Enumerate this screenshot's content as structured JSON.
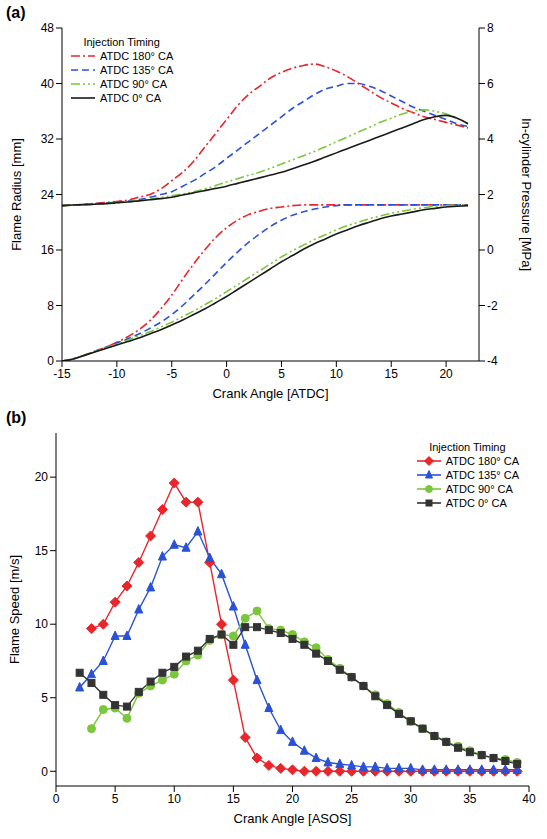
{
  "chart_data": [
    {
      "type": "line",
      "title": "(a)",
      "x_label": "Crank Angle [ATDC]",
      "y_label": "Flame Radius [mm]",
      "y2_label": "In-cylinder Pressure [MPa]",
      "legend_title": "Injection Timing",
      "legend": "upper left",
      "grid": false,
      "xlim": [
        -15,
        23
      ],
      "xticks": [
        -15,
        -10,
        -5,
        0,
        5,
        10,
        15,
        20
      ],
      "ylim": [
        0,
        48
      ],
      "yticks": [
        0,
        8,
        16,
        24,
        32,
        40,
        48
      ],
      "y2lim": [
        -4,
        8
      ],
      "y2ticks": [
        -4,
        -2,
        0,
        2,
        4,
        6,
        8
      ],
      "x": [
        -15,
        -14,
        -13,
        -12,
        -11,
        -10,
        -9,
        -8,
        -7,
        -6,
        -5,
        -4,
        -3,
        -2,
        -1,
        0,
        1,
        2,
        3,
        4,
        5,
        6,
        7,
        8,
        9,
        10,
        11,
        12,
        13,
        14,
        15,
        16,
        17,
        18,
        19,
        20,
        21,
        22
      ],
      "series": [
        {
          "name": "ATDC 180° CA",
          "color": "#e8262b",
          "line_style": "dashdot",
          "values": [
            0,
            0.3,
            0.8,
            1.4,
            2.0,
            2.7,
            3.5,
            4.5,
            5.8,
            7.5,
            9.5,
            11.8,
            14.0,
            16.0,
            17.8,
            19.2,
            20.3,
            21.1,
            21.6,
            22.0,
            22.2,
            22.4,
            22.5,
            22.5,
            22.5,
            22.5,
            22.5,
            22.5,
            22.5,
            22.5,
            22.5,
            22.5,
            22.5,
            22.5,
            22.5,
            22.5,
            22.5,
            22.5
          ]
        },
        {
          "name": "ATDC 135° CA",
          "color": "#2a52d6",
          "line_style": "dashed",
          "values": [
            0,
            0.3,
            0.8,
            1.4,
            2.0,
            2.6,
            3.2,
            3.9,
            4.7,
            5.6,
            6.7,
            8.0,
            9.5,
            11.0,
            12.6,
            14.2,
            15.7,
            17.1,
            18.3,
            19.4,
            20.3,
            21.0,
            21.5,
            21.9,
            22.2,
            22.4,
            22.5,
            22.5,
            22.5,
            22.5,
            22.5,
            22.5,
            22.5,
            22.5,
            22.5,
            22.5,
            22.5,
            22.5
          ]
        },
        {
          "name": "ATDC 90° CA",
          "color": "#7cc63c",
          "line_style": "dashdotdot",
          "values": [
            0,
            0.3,
            0.8,
            1.4,
            1.9,
            2.4,
            3.0,
            3.6,
            4.2,
            4.9,
            5.6,
            6.4,
            7.2,
            8.1,
            9.0,
            10.0,
            11.0,
            12.0,
            13.0,
            14.0,
            15.0,
            15.9,
            16.7,
            17.5,
            18.2,
            18.9,
            19.5,
            20.0,
            20.5,
            20.9,
            21.3,
            21.6,
            21.9,
            22.1,
            22.3,
            22.4,
            22.5,
            22.5
          ]
        },
        {
          "name": "ATDC 0° CA",
          "color": "#1a1a1a",
          "line_style": "solid",
          "values": [
            0,
            0.3,
            0.8,
            1.3,
            1.8,
            2.3,
            2.8,
            3.3,
            3.9,
            4.5,
            5.2,
            5.9,
            6.7,
            7.5,
            8.4,
            9.3,
            10.3,
            11.3,
            12.3,
            13.3,
            14.3,
            15.2,
            16.1,
            16.9,
            17.6,
            18.3,
            18.9,
            19.5,
            20.0,
            20.5,
            20.9,
            21.2,
            21.5,
            21.8,
            22.0,
            22.2,
            22.3,
            22.4
          ]
        },
        {
          "name": "ATDC 180° CA",
          "color": "#e8262b",
          "line_style": "dashdot",
          "axis": "y2",
          "values": [
            1.6,
            1.62,
            1.65,
            1.68,
            1.71,
            1.75,
            1.8,
            1.9,
            2.0,
            2.2,
            2.5,
            2.8,
            3.2,
            3.7,
            4.2,
            4.7,
            5.2,
            5.6,
            5.9,
            6.2,
            6.4,
            6.55,
            6.65,
            6.7,
            6.6,
            6.45,
            6.25,
            6.0,
            5.75,
            5.5,
            5.3,
            5.1,
            4.95,
            4.8,
            4.7,
            4.6,
            4.5,
            4.4
          ]
        },
        {
          "name": "ATDC 135° CA",
          "color": "#2a52d6",
          "line_style": "dashed",
          "axis": "y2",
          "values": [
            1.6,
            1.62,
            1.64,
            1.66,
            1.69,
            1.72,
            1.76,
            1.82,
            1.9,
            2.0,
            2.1,
            2.3,
            2.5,
            2.75,
            3.0,
            3.3,
            3.6,
            3.9,
            4.2,
            4.5,
            4.8,
            5.1,
            5.35,
            5.6,
            5.8,
            5.9,
            6.0,
            6.0,
            5.9,
            5.75,
            5.55,
            5.35,
            5.15,
            5.0,
            4.85,
            4.7,
            4.55,
            4.45
          ]
        },
        {
          "name": "ATDC 90° CA",
          "color": "#7cc63c",
          "line_style": "dashdotdot",
          "axis": "y2",
          "values": [
            1.6,
            1.62,
            1.63,
            1.65,
            1.67,
            1.7,
            1.74,
            1.78,
            1.83,
            1.89,
            1.95,
            2.02,
            2.1,
            2.2,
            2.32,
            2.45,
            2.57,
            2.69,
            2.8,
            2.95,
            3.1,
            3.25,
            3.4,
            3.55,
            3.72,
            3.9,
            4.07,
            4.25,
            4.42,
            4.6,
            4.75,
            4.9,
            5.0,
            5.05,
            5.0,
            4.9,
            4.75,
            4.55
          ]
        },
        {
          "name": "ATDC 0° CA",
          "color": "#1a1a1a",
          "line_style": "solid",
          "axis": "y2",
          "values": [
            1.6,
            1.62,
            1.63,
            1.65,
            1.67,
            1.7,
            1.73,
            1.77,
            1.81,
            1.85,
            1.9,
            1.98,
            2.06,
            2.14,
            2.22,
            2.3,
            2.4,
            2.5,
            2.6,
            2.7,
            2.8,
            2.93,
            3.06,
            3.2,
            3.35,
            3.5,
            3.65,
            3.8,
            3.95,
            4.1,
            4.25,
            4.4,
            4.55,
            4.7,
            4.8,
            4.85,
            4.75,
            4.55
          ]
        }
      ]
    },
    {
      "type": "line",
      "title": "(b)",
      "x_label": "Crank Angle [ASOS]",
      "y_label": "Flame Speed [m/s]",
      "legend_title": "Injection Timing",
      "legend": "upper right",
      "grid": false,
      "xlim": [
        0,
        40
      ],
      "xticks": [
        0,
        5,
        10,
        15,
        20,
        25,
        30,
        35,
        40
      ],
      "ylim": [
        -1,
        23
      ],
      "yticks": [
        0,
        5,
        10,
        15,
        20
      ],
      "series": [
        {
          "name": "ATDC 180° CA",
          "color": "#e8262b",
          "marker": "diamond",
          "line_style": "solid",
          "x": [
            3,
            4,
            5,
            6,
            7,
            8,
            9,
            10,
            11,
            12,
            13,
            14,
            15,
            16,
            17,
            18,
            19,
            20,
            21,
            22,
            23,
            24,
            25,
            26,
            27,
            28,
            29,
            30,
            31,
            32,
            33,
            34,
            35,
            36,
            37,
            38,
            39
          ],
          "values": [
            9.7,
            10.0,
            11.5,
            12.6,
            14.2,
            16.0,
            17.8,
            19.6,
            18.3,
            18.3,
            14.2,
            10.0,
            6.2,
            2.3,
            0.9,
            0.4,
            0.2,
            0.1,
            0,
            0,
            0,
            0,
            0,
            0,
            0,
            0,
            0,
            0,
            0,
            0,
            0,
            0,
            0,
            0,
            0,
            0,
            0
          ]
        },
        {
          "name": "ATDC 135° CA",
          "color": "#2a52d6",
          "marker": "triangle",
          "line_style": "solid",
          "x": [
            2,
            3,
            4,
            5,
            6,
            7,
            8,
            9,
            10,
            11,
            12,
            13,
            14,
            15,
            16,
            17,
            18,
            19,
            20,
            21,
            22,
            23,
            24,
            25,
            26,
            27,
            28,
            29,
            30,
            31,
            32,
            33,
            34,
            35,
            36,
            37,
            38,
            39
          ],
          "values": [
            5.7,
            6.6,
            7.5,
            9.2,
            9.2,
            11.0,
            12.5,
            14.6,
            15.4,
            15.2,
            16.3,
            14.5,
            13.4,
            11.2,
            8.6,
            6.2,
            4.3,
            2.8,
            2.0,
            1.4,
            0.9,
            0.6,
            0.5,
            0.4,
            0.3,
            0.3,
            0.2,
            0.2,
            0.2,
            0.1,
            0.1,
            0.1,
            0.1,
            0.1,
            0.1,
            0.1,
            0.1,
            0.1
          ]
        },
        {
          "name": "ATDC 90° CA",
          "color": "#7cc63c",
          "marker": "circle",
          "line_style": "solid",
          "x": [
            3,
            4,
            5,
            6,
            7,
            8,
            9,
            10,
            11,
            12,
            13,
            14,
            15,
            16,
            17,
            18,
            19,
            20,
            21,
            22,
            23,
            24,
            25,
            26,
            27,
            28,
            29,
            30,
            31,
            32,
            33,
            34,
            35,
            36,
            37,
            38,
            39
          ],
          "values": [
            2.9,
            4.2,
            4.3,
            3.6,
            5.3,
            5.8,
            6.2,
            6.6,
            7.5,
            7.9,
            8.9,
            9.3,
            9.2,
            10.4,
            10.9,
            9.7,
            9.6,
            9.3,
            8.8,
            8.4,
            7.6,
            7.0,
            6.4,
            5.8,
            5.2,
            4.6,
            4.0,
            3.4,
            2.9,
            2.4,
            2.0,
            1.7,
            1.4,
            1.1,
            0.9,
            0.8,
            0.6
          ]
        },
        {
          "name": "ATDC 0° CA",
          "color": "#333333",
          "marker": "square",
          "line_style": "solid",
          "x": [
            2,
            3,
            4,
            5,
            6,
            7,
            8,
            9,
            10,
            11,
            12,
            13,
            14,
            15,
            16,
            17,
            18,
            19,
            20,
            21,
            22,
            23,
            24,
            25,
            26,
            27,
            28,
            29,
            30,
            31,
            32,
            33,
            34,
            35,
            36,
            37,
            38,
            39
          ],
          "values": [
            6.7,
            6.0,
            5.2,
            4.5,
            4.4,
            5.4,
            6.1,
            6.7,
            7.1,
            7.8,
            8.2,
            9.0,
            9.3,
            8.6,
            9.8,
            9.8,
            9.6,
            9.4,
            9.0,
            8.6,
            8.0,
            7.5,
            6.9,
            6.4,
            5.8,
            5.1,
            4.5,
            3.9,
            3.4,
            2.9,
            2.4,
            2.0,
            1.6,
            1.3,
            1.1,
            0.9,
            0.7,
            0.5
          ]
        }
      ]
    }
  ]
}
